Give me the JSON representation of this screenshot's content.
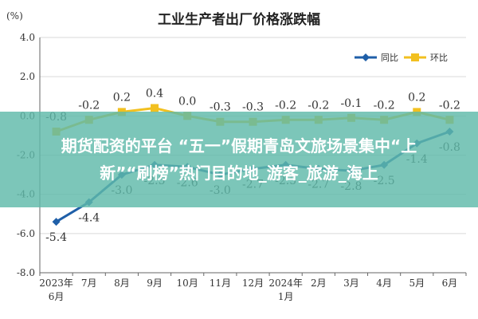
{
  "chart_data": {
    "type": "line",
    "title": "工业生产者出厂价格涨跌幅",
    "ylabel": "(%)",
    "ylim": [
      -8.0,
      4.0
    ],
    "yticks": [
      "4.0",
      "2.0",
      "0.0",
      "-2.0",
      "-4.0",
      "-6.0",
      "-8.0"
    ],
    "categories": [
      "2023年6月",
      "7月",
      "8月",
      "9月",
      "10月",
      "11月",
      "12月",
      "2024年1月",
      "2月",
      "3月",
      "4月",
      "5月",
      "6月"
    ],
    "category_lines": [
      [
        "2023年",
        "6月"
      ],
      [
        "7月"
      ],
      [
        "8月"
      ],
      [
        "9月"
      ],
      [
        "10月"
      ],
      [
        "11月"
      ],
      [
        "12月"
      ],
      [
        "2024年",
        "1月"
      ],
      [
        "2月"
      ],
      [
        "3月"
      ],
      [
        "4月"
      ],
      [
        "5月"
      ],
      [
        "6月"
      ]
    ],
    "legend_position": "top-right",
    "series": [
      {
        "name": "同比",
        "color": "#1f5fa8",
        "values": [
          -5.4,
          -4.4,
          -3.0,
          -2.5,
          -2.6,
          -3.0,
          -2.7,
          -2.5,
          -2.7,
          -2.8,
          -2.5,
          -1.4,
          -0.8
        ],
        "labels": [
          "-5.4",
          "-4.4",
          "-3.0",
          "-2.5",
          "-2.6",
          "-3.0",
          "-2.7",
          "-2.5",
          "-2.7",
          "-2.8",
          "-2.5",
          "-1.4",
          "-0.8"
        ]
      },
      {
        "name": "环比",
        "color": "#f2c020",
        "values": [
          -0.8,
          -0.2,
          0.2,
          0.4,
          0.0,
          -0.3,
          -0.3,
          -0.2,
          -0.2,
          -0.1,
          -0.2,
          0.2,
          -0.2
        ],
        "labels": [
          "-0.8",
          "-0.2",
          "0.2",
          "0.4",
          "0.0",
          "-0.3",
          "-0.3",
          "-0.2",
          "-0.2",
          "-0.1",
          "-0.2",
          "0.2",
          "-0.2"
        ]
      }
    ]
  },
  "banner": {
    "line1": "期货配资的平台 “五一”假期青岛文旅场景集中“上",
    "line2": "新”“刷榜”热门目的地_游客_旅游_海上"
  }
}
